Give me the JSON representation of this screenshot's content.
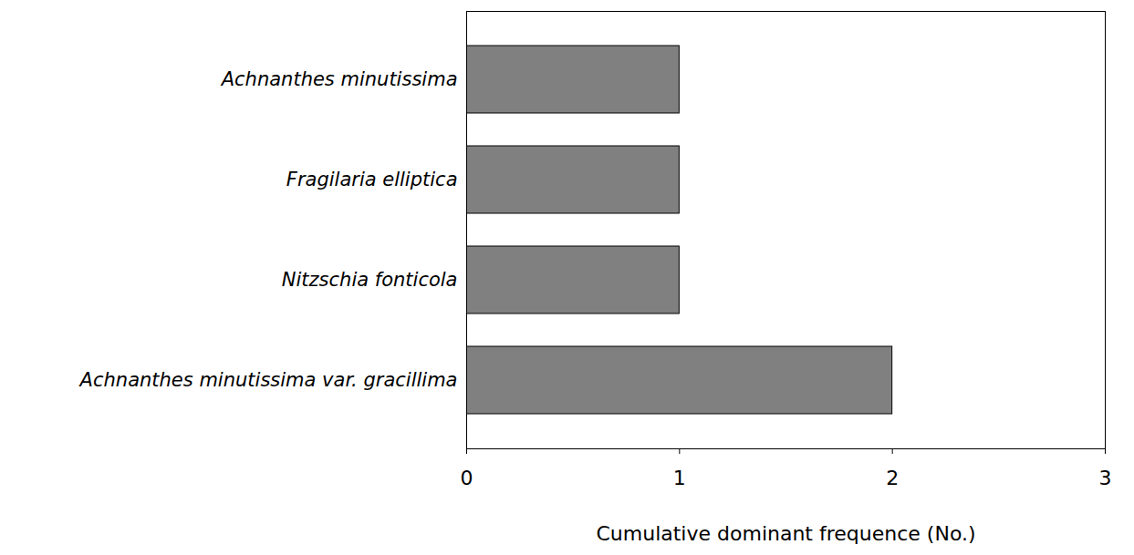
{
  "chart_data": {
    "type": "bar",
    "orientation": "horizontal",
    "categories": [
      "Achnanthes minutissima",
      "Fragilaria elliptica",
      "Nitzschia fonticola",
      "Achnanthes minutissima var. gracillima"
    ],
    "values": [
      1,
      1,
      1,
      2
    ],
    "color": "#808080",
    "xlabel": "Cumulative dominant frequence (No.)",
    "xlim": [
      0,
      3
    ],
    "xticks": [
      0,
      1,
      2,
      3
    ],
    "grid": false
  }
}
